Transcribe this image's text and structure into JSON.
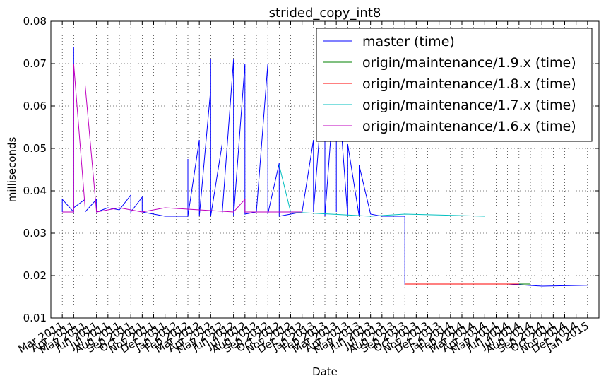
{
  "chart_data": {
    "type": "line",
    "title": "strided_copy_int8",
    "xlabel": "Date",
    "ylabel": "milliseconds",
    "xlim": [
      "2011-02",
      "2015-02"
    ],
    "ylim": [
      0.01,
      0.08
    ],
    "yticks": [
      0.01,
      0.02,
      0.03,
      0.04,
      0.05,
      0.06,
      0.07,
      0.08
    ],
    "xticks": [
      {
        "value": "2011-03",
        "label": "Mar 2011"
      },
      {
        "value": "2011-04",
        "label": "Apr 2011"
      },
      {
        "value": "2011-05",
        "label": "May 2011"
      },
      {
        "value": "2011-06",
        "label": "Jun 2011"
      },
      {
        "value": "2011-07",
        "label": "Jul 2011"
      },
      {
        "value": "2011-08",
        "label": "Aug 2011"
      },
      {
        "value": "2011-09",
        "label": "Sep 2011"
      },
      {
        "value": "2011-10",
        "label": "Oct 2011"
      },
      {
        "value": "2011-11",
        "label": "Nov 2011"
      },
      {
        "value": "2011-12",
        "label": "Dec 2011"
      },
      {
        "value": "2012-01",
        "label": "Jan 2012"
      },
      {
        "value": "2012-02",
        "label": "Feb 2012"
      },
      {
        "value": "2012-03",
        "label": "Mar 2012"
      },
      {
        "value": "2012-04",
        "label": "Apr 2012"
      },
      {
        "value": "2012-05",
        "label": "May 2012"
      },
      {
        "value": "2012-06",
        "label": "Jun 2012"
      },
      {
        "value": "2012-07",
        "label": "Jul 2012"
      },
      {
        "value": "2012-08",
        "label": "Aug 2012"
      },
      {
        "value": "2012-09",
        "label": "Sep 2012"
      },
      {
        "value": "2012-10",
        "label": "Oct 2012"
      },
      {
        "value": "2012-11",
        "label": "Nov 2012"
      },
      {
        "value": "2012-12",
        "label": "Dec 2012"
      },
      {
        "value": "2013-01",
        "label": "Jan 2013"
      },
      {
        "value": "2013-02",
        "label": "Feb 2013"
      },
      {
        "value": "2013-03",
        "label": "Mar 2013"
      },
      {
        "value": "2013-04",
        "label": "Apr 2013"
      },
      {
        "value": "2013-05",
        "label": "May 2013"
      },
      {
        "value": "2013-06",
        "label": "Jun 2013"
      },
      {
        "value": "2013-07",
        "label": "Jul 2013"
      },
      {
        "value": "2013-08",
        "label": "Aug 2013"
      },
      {
        "value": "2013-09",
        "label": "Sep 2013"
      },
      {
        "value": "2013-10",
        "label": "Oct 2013"
      },
      {
        "value": "2013-11",
        "label": "Nov 2013"
      },
      {
        "value": "2013-12",
        "label": "Dec 2013"
      },
      {
        "value": "2014-01",
        "label": "Jan 2014"
      },
      {
        "value": "2014-02",
        "label": "Feb 2014"
      },
      {
        "value": "2014-03",
        "label": "Mar 2014"
      },
      {
        "value": "2014-04",
        "label": "Apr 2014"
      },
      {
        "value": "2014-05",
        "label": "May 2014"
      },
      {
        "value": "2014-06",
        "label": "Jun 2014"
      },
      {
        "value": "2014-07",
        "label": "Jul 2014"
      },
      {
        "value": "2014-08",
        "label": "Aug 2014"
      },
      {
        "value": "2014-09",
        "label": "Sep 2014"
      },
      {
        "value": "2014-10",
        "label": "Oct 2014"
      },
      {
        "value": "2014-11",
        "label": "Nov 2014"
      },
      {
        "value": "2014-12",
        "label": "Dec 2014"
      },
      {
        "value": "2015-01",
        "label": "Jan 2015"
      }
    ],
    "grid": true,
    "legend": "upper right",
    "series": [
      {
        "name": "master (time)",
        "color": "#0000ff",
        "x": [
          "2011-03",
          "2011-03",
          "2011-04",
          "2011-04",
          "2011-04",
          "2011-05",
          "2011-05",
          "2011-06",
          "2011-06",
          "2011-07",
          "2011-08",
          "2011-09",
          "2011-09",
          "2011-10",
          "2011-10",
          "2011-11",
          "2011-12",
          "2012-01",
          "2012-02",
          "2012-02",
          "2012-02",
          "2012-03",
          "2012-03",
          "2012-04",
          "2012-04",
          "2012-04",
          "2012-04",
          "2012-05",
          "2012-05",
          "2012-06",
          "2012-06",
          "2012-07",
          "2012-07",
          "2012-08",
          "2012-09",
          "2012-09",
          "2012-10",
          "2012-10",
          "2012-11",
          "2012-12",
          "2013-01",
          "2013-01",
          "2013-02",
          "2013-02",
          "2013-03",
          "2013-03",
          "2013-03",
          "2013-04",
          "2013-04",
          "2013-05",
          "2013-05",
          "2013-06",
          "2013-07",
          "2013-08",
          "2013-09",
          "2013-09",
          "2013-12",
          "2014-06",
          "2014-09",
          "2015-01"
        ],
        "values": [
          0.035,
          0.038,
          0.035,
          0.074,
          0.036,
          0.038,
          0.035,
          0.038,
          0.035,
          0.036,
          0.0355,
          0.039,
          0.035,
          0.0385,
          0.035,
          0.0345,
          0.034,
          0.034,
          0.034,
          0.0475,
          0.034,
          0.052,
          0.034,
          0.064,
          0.0345,
          0.071,
          0.034,
          0.051,
          0.0345,
          0.071,
          0.034,
          0.07,
          0.0345,
          0.035,
          0.07,
          0.0345,
          0.0465,
          0.034,
          0.0345,
          0.035,
          0.052,
          0.035,
          0.07,
          0.034,
          0.0705,
          0.035,
          0.07,
          0.034,
          0.051,
          0.034,
          0.046,
          0.0345,
          0.034,
          0.034,
          0.034,
          0.018,
          0.018,
          0.018,
          0.0175,
          0.0177
        ]
      },
      {
        "name": "origin/maintenance/1.9.x (time)",
        "color": "#008000",
        "x": [
          "2014-06",
          "2014-08"
        ],
        "values": [
          0.018,
          0.018
        ]
      },
      {
        "name": "origin/maintenance/1.8.x (time)",
        "color": "#ff0000",
        "x": [
          "2013-09",
          "2014-07"
        ],
        "values": [
          0.018,
          0.018
        ]
      },
      {
        "name": "origin/maintenance/1.7.x (time)",
        "color": "#00bfbf",
        "x": [
          "2012-10",
          "2012-11",
          "2013-06",
          "2013-09",
          "2014-04"
        ],
        "values": [
          0.046,
          0.035,
          0.034,
          0.0345,
          0.034
        ]
      },
      {
        "name": "origin/maintenance/1.6.x (time)",
        "color": "#bf00bf",
        "x": [
          "2011-03",
          "2011-04",
          "2011-04",
          "2011-05",
          "2011-05",
          "2011-06",
          "2011-08",
          "2011-10",
          "2011-12",
          "2012-03",
          "2012-06",
          "2012-07",
          "2012-07",
          "2012-12"
        ],
        "values": [
          0.035,
          0.035,
          0.07,
          0.036,
          0.065,
          0.035,
          0.036,
          0.035,
          0.036,
          0.0355,
          0.035,
          0.038,
          0.035,
          0.035
        ]
      }
    ]
  }
}
